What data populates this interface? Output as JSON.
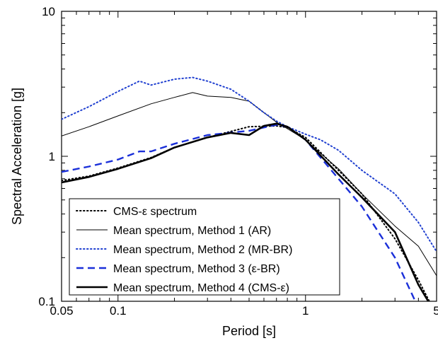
{
  "chart_data": {
    "type": "line",
    "xlabel": "Period [s]",
    "ylabel": "Spectral Acceleration [g]",
    "xscale": "log",
    "yscale": "log",
    "xlim": [
      0.05,
      5
    ],
    "ylim": [
      0.1,
      10
    ],
    "x_ticks": [
      {
        "value": 0.05,
        "label": "0.05"
      },
      {
        "value": 0.1,
        "label": "0.1"
      },
      {
        "value": 1,
        "label": "1"
      },
      {
        "value": 5,
        "label": "5"
      }
    ],
    "y_ticks": [
      {
        "value": 0.1,
        "label": "0.1"
      },
      {
        "value": 1,
        "label": "1"
      },
      {
        "value": 10,
        "label": "10"
      }
    ],
    "grid": false,
    "legend_position": "bottom-left",
    "series": [
      {
        "name": "CMS-ε spectrum",
        "color": "#000000",
        "style": "dotted",
        "x": [
          0.05,
          0.07,
          0.1,
          0.15,
          0.2,
          0.3,
          0.5,
          0.7,
          0.8,
          1.0,
          1.5,
          2.0,
          3.0,
          4.0,
          5.0
        ],
        "y": [
          0.68,
          0.73,
          0.83,
          0.98,
          1.15,
          1.35,
          1.6,
          1.62,
          1.58,
          1.35,
          0.8,
          0.55,
          0.27,
          0.14,
          0.08
        ]
      },
      {
        "name": "Mean spectrum, Method 1 (AR)",
        "color": "#000000",
        "style": "solid-thin",
        "x": [
          0.05,
          0.07,
          0.1,
          0.15,
          0.2,
          0.25,
          0.3,
          0.4,
          0.5,
          0.6,
          0.7,
          0.8,
          1.0,
          1.2,
          1.5,
          2.0,
          3.0,
          4.0,
          5.0
        ],
        "y": [
          1.38,
          1.6,
          1.9,
          2.3,
          2.55,
          2.75,
          2.6,
          2.55,
          2.4,
          2.0,
          1.72,
          1.55,
          1.3,
          1.05,
          0.82,
          0.55,
          0.33,
          0.24,
          0.15
        ]
      },
      {
        "name": "Mean spectrum, Method 2 (MR-BR)",
        "color": "#1f3fd0",
        "style": "dotted",
        "x": [
          0.05,
          0.07,
          0.1,
          0.13,
          0.15,
          0.2,
          0.25,
          0.3,
          0.4,
          0.5,
          0.6,
          0.7,
          0.8,
          1.0,
          1.2,
          1.5,
          2.0,
          3.0,
          4.0,
          5.0
        ],
        "y": [
          1.8,
          2.2,
          2.8,
          3.3,
          3.1,
          3.4,
          3.5,
          3.3,
          2.9,
          2.4,
          2.0,
          1.75,
          1.6,
          1.42,
          1.3,
          1.1,
          0.8,
          0.55,
          0.35,
          0.22
        ]
      },
      {
        "name": "Mean spectrum, Method 3 (ε-BR)",
        "color": "#1a2fd9",
        "style": "dashed",
        "x": [
          0.05,
          0.07,
          0.1,
          0.13,
          0.15,
          0.2,
          0.3,
          0.5,
          0.7,
          0.8,
          1.0,
          1.5,
          2.0,
          3.0,
          4.0,
          5.0
        ],
        "y": [
          0.78,
          0.85,
          0.95,
          1.08,
          1.08,
          1.22,
          1.4,
          1.5,
          1.65,
          1.6,
          1.3,
          0.7,
          0.45,
          0.2,
          0.09,
          0.08
        ]
      },
      {
        "name": "Mean spectrum, Method 4 (CMS-ε)",
        "color": "#000000",
        "style": "solid-thick",
        "x": [
          0.05,
          0.07,
          0.1,
          0.15,
          0.2,
          0.3,
          0.4,
          0.5,
          0.6,
          0.7,
          0.8,
          1.0,
          1.5,
          2.0,
          3.0,
          4.0,
          5.0
        ],
        "y": [
          0.66,
          0.72,
          0.82,
          0.97,
          1.15,
          1.35,
          1.45,
          1.4,
          1.62,
          1.68,
          1.6,
          1.3,
          0.75,
          0.52,
          0.3,
          0.13,
          0.08
        ]
      }
    ]
  }
}
